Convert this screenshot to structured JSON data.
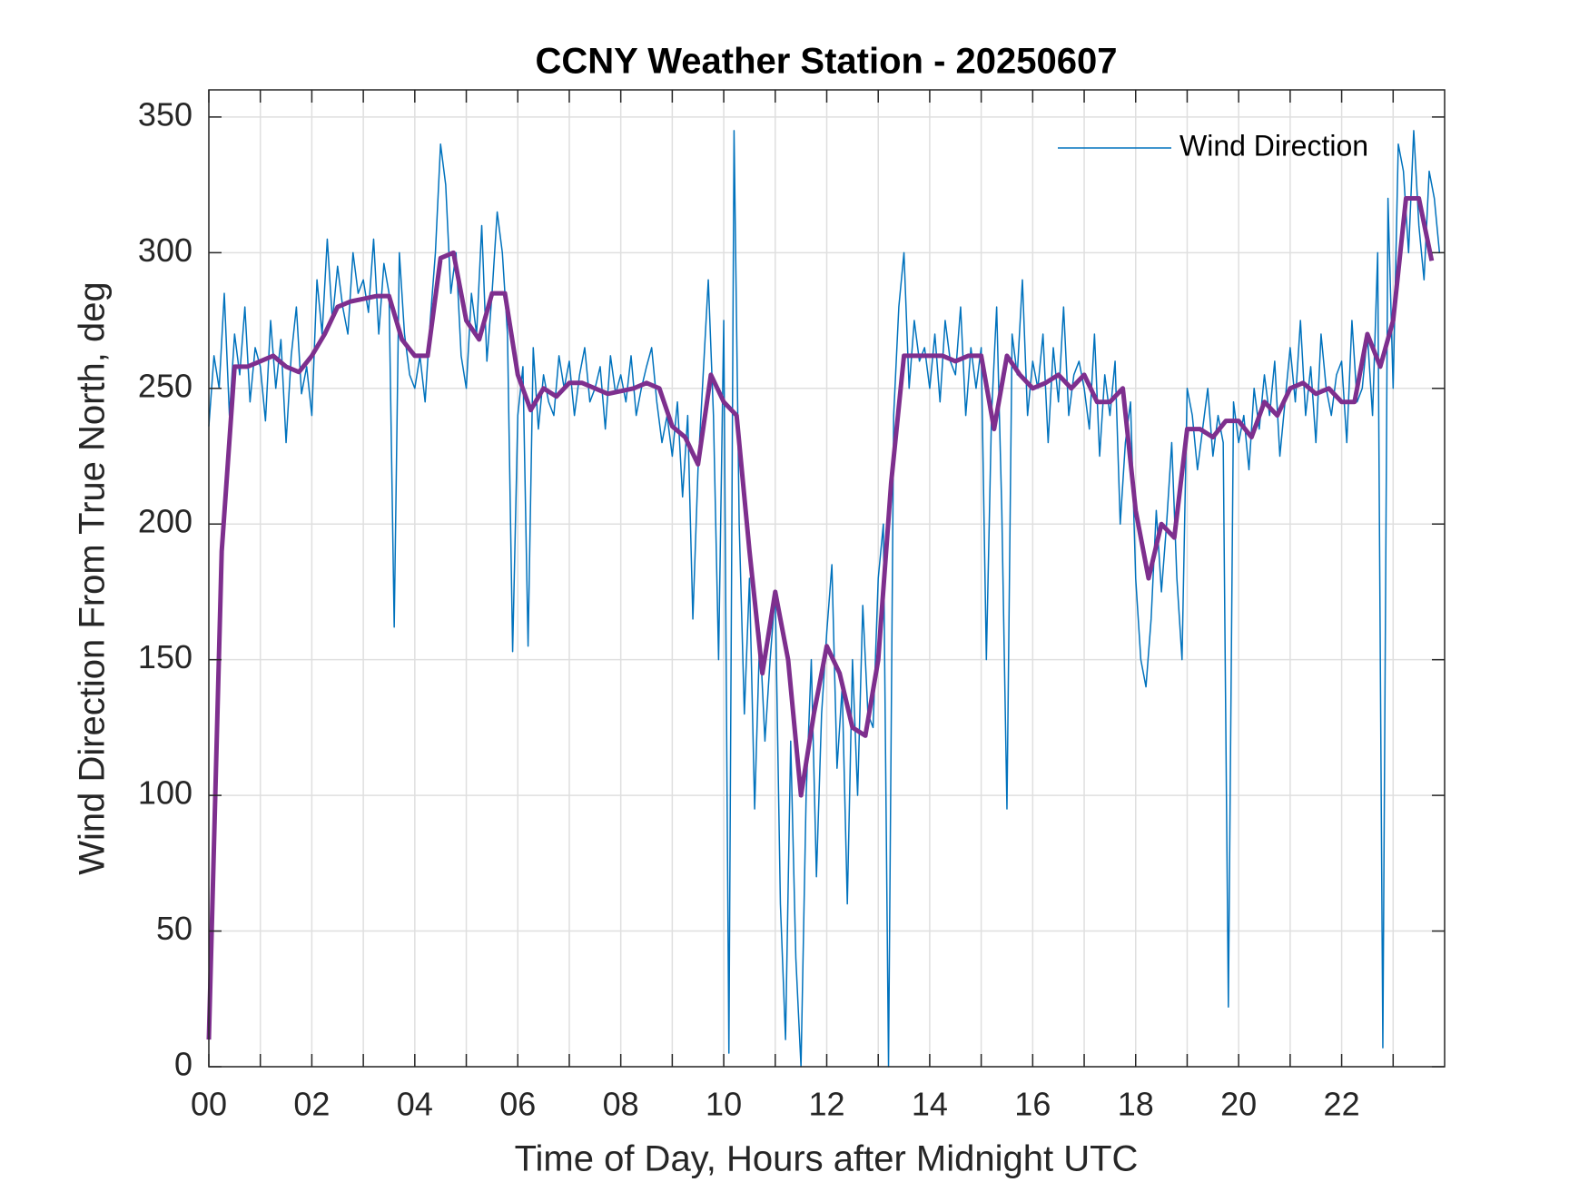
{
  "chart_data": {
    "type": "line",
    "title": "CCNY Weather Station - 20250607",
    "xlabel": "Time of Day, Hours after Midnight UTC",
    "ylabel": "Wind Direction From True North, deg",
    "xlim": [
      0,
      24
    ],
    "ylim": [
      0,
      360
    ],
    "xticks": [
      {
        "value": 0,
        "label": "00"
      },
      {
        "value": 2,
        "label": "02"
      },
      {
        "value": 4,
        "label": "04"
      },
      {
        "value": 6,
        "label": "06"
      },
      {
        "value": 8,
        "label": "08"
      },
      {
        "value": 10,
        "label": "10"
      },
      {
        "value": 12,
        "label": "12"
      },
      {
        "value": 14,
        "label": "14"
      },
      {
        "value": 16,
        "label": "16"
      },
      {
        "value": 18,
        "label": "18"
      },
      {
        "value": 20,
        "label": "20"
      },
      {
        "value": 22,
        "label": "22"
      }
    ],
    "xminorticks": [
      1,
      3,
      5,
      7,
      9,
      11,
      13,
      15,
      17,
      19,
      21,
      23
    ],
    "yticks": [
      0,
      50,
      100,
      150,
      200,
      250,
      300,
      350
    ],
    "grid": true,
    "legend": "northeast",
    "series": [
      {
        "name": "Wind Direction",
        "color": "#0072bd",
        "width": 1.5,
        "x": [
          0,
          0.1,
          0.2,
          0.3,
          0.4,
          0.5,
          0.6,
          0.7,
          0.8,
          0.9,
          1,
          1.1,
          1.2,
          1.3,
          1.4,
          1.5,
          1.6,
          1.7,
          1.8,
          1.9,
          2,
          2.1,
          2.2,
          2.3,
          2.4,
          2.5,
          2.6,
          2.7,
          2.8,
          2.9,
          3,
          3.1,
          3.2,
          3.3,
          3.4,
          3.5,
          3.6,
          3.7,
          3.8,
          3.9,
          4,
          4.1,
          4.2,
          4.3,
          4.4,
          4.5,
          4.6,
          4.7,
          4.8,
          4.9,
          5,
          5.1,
          5.2,
          5.3,
          5.4,
          5.5,
          5.6,
          5.7,
          5.8,
          5.9,
          6,
          6.1,
          6.2,
          6.3,
          6.4,
          6.5,
          6.6,
          6.7,
          6.8,
          6.9,
          7,
          7.1,
          7.2,
          7.3,
          7.4,
          7.5,
          7.6,
          7.7,
          7.8,
          7.9,
          8,
          8.1,
          8.2,
          8.3,
          8.4,
          8.5,
          8.6,
          8.7,
          8.8,
          8.9,
          9,
          9.1,
          9.2,
          9.3,
          9.4,
          9.5,
          9.6,
          9.7,
          9.8,
          9.9,
          10,
          10.1,
          10.2,
          10.3,
          10.4,
          10.5,
          10.6,
          10.7,
          10.8,
          10.9,
          11,
          11.1,
          11.2,
          11.3,
          11.4,
          11.5,
          11.6,
          11.7,
          11.8,
          11.9,
          12,
          12.1,
          12.2,
          12.3,
          12.4,
          12.5,
          12.6,
          12.7,
          12.8,
          12.9,
          13,
          13.1,
          13.2,
          13.3,
          13.4,
          13.5,
          13.6,
          13.7,
          13.8,
          13.9,
          14,
          14.1,
          14.2,
          14.3,
          14.4,
          14.5,
          14.6,
          14.7,
          14.8,
          14.9,
          15,
          15.1,
          15.2,
          15.3,
          15.4,
          15.5,
          15.6,
          15.7,
          15.8,
          15.9,
          16,
          16.1,
          16.2,
          16.3,
          16.4,
          16.5,
          16.6,
          16.7,
          16.8,
          16.9,
          17,
          17.1,
          17.2,
          17.3,
          17.4,
          17.5,
          17.6,
          17.7,
          17.8,
          17.9,
          18,
          18.1,
          18.2,
          18.3,
          18.4,
          18.5,
          18.6,
          18.7,
          18.8,
          18.9,
          19,
          19.1,
          19.2,
          19.3,
          19.4,
          19.5,
          19.6,
          19.7,
          19.8,
          19.9,
          20,
          20.1,
          20.2,
          20.3,
          20.4,
          20.5,
          20.6,
          20.7,
          20.8,
          20.9,
          21,
          21.1,
          21.2,
          21.3,
          21.4,
          21.5,
          21.6,
          21.7,
          21.8,
          21.9,
          22,
          22.1,
          22.2,
          22.3,
          22.4,
          22.5,
          22.6,
          22.7,
          22.8,
          22.9,
          23,
          23.1,
          23.2,
          23.3,
          23.4,
          23.5,
          23.6,
          23.7,
          23.8,
          23.9
        ],
        "values": [
          236,
          262,
          250,
          285,
          240,
          270,
          255,
          280,
          245,
          265,
          258,
          238,
          275,
          250,
          268,
          230,
          262,
          280,
          248,
          258,
          240,
          290,
          270,
          305,
          275,
          295,
          280,
          270,
          300,
          285,
          290,
          278,
          305,
          270,
          296,
          285,
          162,
          300,
          270,
          255,
          250,
          262,
          245,
          275,
          300,
          340,
          325,
          285,
          300,
          262,
          250,
          285,
          270,
          310,
          260,
          285,
          315,
          300,
          270,
          153,
          240,
          258,
          155,
          265,
          235,
          255,
          245,
          240,
          262,
          250,
          260,
          240,
          255,
          265,
          245,
          250,
          258,
          235,
          262,
          248,
          255,
          245,
          262,
          240,
          250,
          258,
          265,
          245,
          230,
          240,
          225,
          245,
          210,
          240,
          165,
          220,
          255,
          290,
          240,
          150,
          275,
          5,
          345,
          200,
          130,
          180,
          95,
          160,
          120,
          150,
          175,
          60,
          10,
          120,
          40,
          0,
          100,
          150,
          70,
          130,
          160,
          185,
          110,
          140,
          60,
          150,
          100,
          170,
          130,
          125,
          180,
          200,
          0,
          240,
          280,
          300,
          250,
          275,
          260,
          265,
          250,
          270,
          245,
          275,
          260,
          255,
          280,
          240,
          265,
          250,
          265,
          150,
          240,
          280,
          205,
          95,
          270,
          255,
          290,
          240,
          260,
          250,
          270,
          230,
          265,
          245,
          280,
          240,
          255,
          260,
          250,
          235,
          270,
          225,
          255,
          240,
          260,
          200,
          230,
          245,
          180,
          150,
          140,
          165,
          205,
          175,
          200,
          230,
          180,
          150,
          250,
          240,
          220,
          235,
          250,
          225,
          240,
          230,
          22,
          245,
          230,
          240,
          220,
          250,
          235,
          255,
          240,
          260,
          225,
          245,
          265,
          245,
          275,
          240,
          258,
          230,
          270,
          250,
          240,
          255,
          260,
          230,
          275,
          245,
          250,
          270,
          240,
          300,
          7,
          320,
          250,
          340,
          330,
          300,
          345,
          310,
          290,
          330,
          320,
          300
        ]
      },
      {
        "color": "#7e2f8e",
        "width": 5,
        "x": [
          0,
          0.25,
          0.5,
          0.75,
          1,
          1.25,
          1.5,
          1.75,
          2,
          2.25,
          2.5,
          2.75,
          3,
          3.25,
          3.5,
          3.75,
          4,
          4.25,
          4.5,
          4.75,
          5,
          5.25,
          5.5,
          5.75,
          6,
          6.25,
          6.5,
          6.75,
          7,
          7.25,
          7.5,
          7.75,
          8,
          8.25,
          8.5,
          8.75,
          9,
          9.25,
          9.5,
          9.75,
          10,
          10.25,
          10.5,
          10.75,
          11,
          11.25,
          11.5,
          11.75,
          12,
          12.25,
          12.5,
          12.75,
          13,
          13.25,
          13.5,
          13.75,
          14,
          14.25,
          14.5,
          14.75,
          15,
          15.25,
          15.5,
          15.75,
          16,
          16.25,
          16.5,
          16.75,
          17,
          17.25,
          17.5,
          17.75,
          18,
          18.25,
          18.5,
          18.75,
          19,
          19.25,
          19.5,
          19.75,
          20,
          20.25,
          20.5,
          20.75,
          21,
          21.25,
          21.5,
          21.75,
          22,
          22.25,
          22.5,
          22.75,
          23,
          23.25,
          23.5,
          23.75
        ],
        "values": [
          10,
          190,
          258,
          258,
          260,
          262,
          258,
          256,
          262,
          270,
          280,
          282,
          283,
          284,
          284,
          268,
          262,
          262,
          298,
          300,
          275,
          268,
          285,
          285,
          255,
          242,
          250,
          247,
          252,
          252,
          250,
          248,
          249,
          250,
          252,
          250,
          236,
          232,
          222,
          255,
          245,
          240,
          190,
          145,
          175,
          150,
          100,
          130,
          155,
          145,
          125,
          122,
          150,
          215,
          262,
          262,
          262,
          262,
          260,
          262,
          262,
          235,
          262,
          255,
          250,
          252,
          255,
          250,
          255,
          245,
          245,
          250,
          205,
          180,
          200,
          195,
          235,
          235,
          232,
          238,
          238,
          232,
          245,
          240,
          250,
          252,
          248,
          250,
          245,
          245,
          270,
          258,
          275,
          320,
          320,
          297
        ]
      }
    ]
  }
}
